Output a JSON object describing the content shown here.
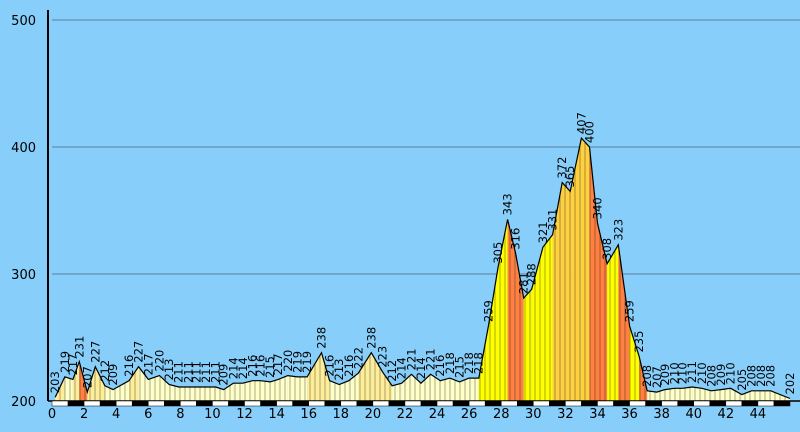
{
  "chart_data": {
    "type": "area",
    "title": "",
    "xlabel": "",
    "ylabel": "",
    "ylim": [
      200,
      500
    ],
    "xlim": [
      0,
      46
    ],
    "grid": true,
    "y_ticks": [
      200,
      300,
      400,
      500
    ],
    "x_ticks": [
      0,
      2,
      4,
      6,
      8,
      10,
      12,
      14,
      16,
      18,
      20,
      22,
      24,
      26,
      28,
      30,
      32,
      34,
      36,
      38,
      40,
      42,
      44
    ],
    "colors": {
      "background": "#87CEFA",
      "grid": "#5B7FA0",
      "low": "#FFFFC8",
      "mid": "#FFEE99",
      "high": "#FFFF00",
      "peak": "#FFD040",
      "steep": "#FF8040"
    },
    "series": [
      {
        "points": [
          {
            "x": 0.2,
            "y": 203
          },
          {
            "x": 0.8,
            "y": 219
          },
          {
            "x": 1.3,
            "y": 217
          },
          {
            "x": 1.7,
            "y": 231
          },
          {
            "x": 2.2,
            "y": 207
          },
          {
            "x": 2.7,
            "y": 227
          },
          {
            "x": 3.3,
            "y": 212
          },
          {
            "x": 3.8,
            "y": 209
          },
          {
            "x": 4.8,
            "y": 216
          },
          {
            "x": 5.4,
            "y": 227
          },
          {
            "x": 6.0,
            "y": 217
          },
          {
            "x": 6.7,
            "y": 220
          },
          {
            "x": 7.3,
            "y": 213
          },
          {
            "x": 7.9,
            "y": 211
          },
          {
            "x": 8.5,
            "y": 211
          },
          {
            "x": 9.0,
            "y": 211
          },
          {
            "x": 9.6,
            "y": 211
          },
          {
            "x": 10.2,
            "y": 211
          },
          {
            "x": 10.7,
            "y": 209
          },
          {
            "x": 11.3,
            "y": 214
          },
          {
            "x": 11.9,
            "y": 214
          },
          {
            "x": 12.5,
            "y": 216
          },
          {
            "x": 13.0,
            "y": 216
          },
          {
            "x": 13.6,
            "y": 215
          },
          {
            "x": 14.1,
            "y": 217
          },
          {
            "x": 14.7,
            "y": 220
          },
          {
            "x": 15.3,
            "y": 219
          },
          {
            "x": 15.9,
            "y": 219
          },
          {
            "x": 16.8,
            "y": 238
          },
          {
            "x": 17.3,
            "y": 216
          },
          {
            "x": 17.9,
            "y": 213
          },
          {
            "x": 18.5,
            "y": 216
          },
          {
            "x": 19.1,
            "y": 222
          },
          {
            "x": 19.9,
            "y": 238
          },
          {
            "x": 20.6,
            "y": 223
          },
          {
            "x": 21.2,
            "y": 212
          },
          {
            "x": 21.8,
            "y": 214
          },
          {
            "x": 22.4,
            "y": 221
          },
          {
            "x": 23.0,
            "y": 214
          },
          {
            "x": 23.6,
            "y": 221
          },
          {
            "x": 24.2,
            "y": 216
          },
          {
            "x": 24.8,
            "y": 218
          },
          {
            "x": 25.4,
            "y": 215
          },
          {
            "x": 26.0,
            "y": 218
          },
          {
            "x": 26.6,
            "y": 218
          },
          {
            "x": 27.2,
            "y": 259
          },
          {
            "x": 27.8,
            "y": 305
          },
          {
            "x": 28.4,
            "y": 343
          },
          {
            "x": 28.9,
            "y": 316
          },
          {
            "x": 29.4,
            "y": 281
          },
          {
            "x": 29.9,
            "y": 288
          },
          {
            "x": 30.6,
            "y": 321
          },
          {
            "x": 31.2,
            "y": 331
          },
          {
            "x": 31.8,
            "y": 372
          },
          {
            "x": 32.3,
            "y": 365
          },
          {
            "x": 33.0,
            "y": 407
          },
          {
            "x": 33.5,
            "y": 400
          },
          {
            "x": 34.0,
            "y": 340
          },
          {
            "x": 34.6,
            "y": 308
          },
          {
            "x": 35.3,
            "y": 323
          },
          {
            "x": 36.0,
            "y": 259
          },
          {
            "x": 36.6,
            "y": 235
          },
          {
            "x": 37.1,
            "y": 208
          },
          {
            "x": 37.7,
            "y": 207
          },
          {
            "x": 38.2,
            "y": 209
          },
          {
            "x": 38.8,
            "y": 210
          },
          {
            "x": 39.3,
            "y": 210
          },
          {
            "x": 39.9,
            "y": 211
          },
          {
            "x": 40.5,
            "y": 210
          },
          {
            "x": 41.1,
            "y": 208
          },
          {
            "x": 41.7,
            "y": 209
          },
          {
            "x": 42.3,
            "y": 210
          },
          {
            "x": 43.0,
            "y": 205
          },
          {
            "x": 43.6,
            "y": 208
          },
          {
            "x": 44.2,
            "y": 208
          },
          {
            "x": 44.8,
            "y": 208
          },
          {
            "x": 46.0,
            "y": 202
          }
        ]
      }
    ]
  }
}
